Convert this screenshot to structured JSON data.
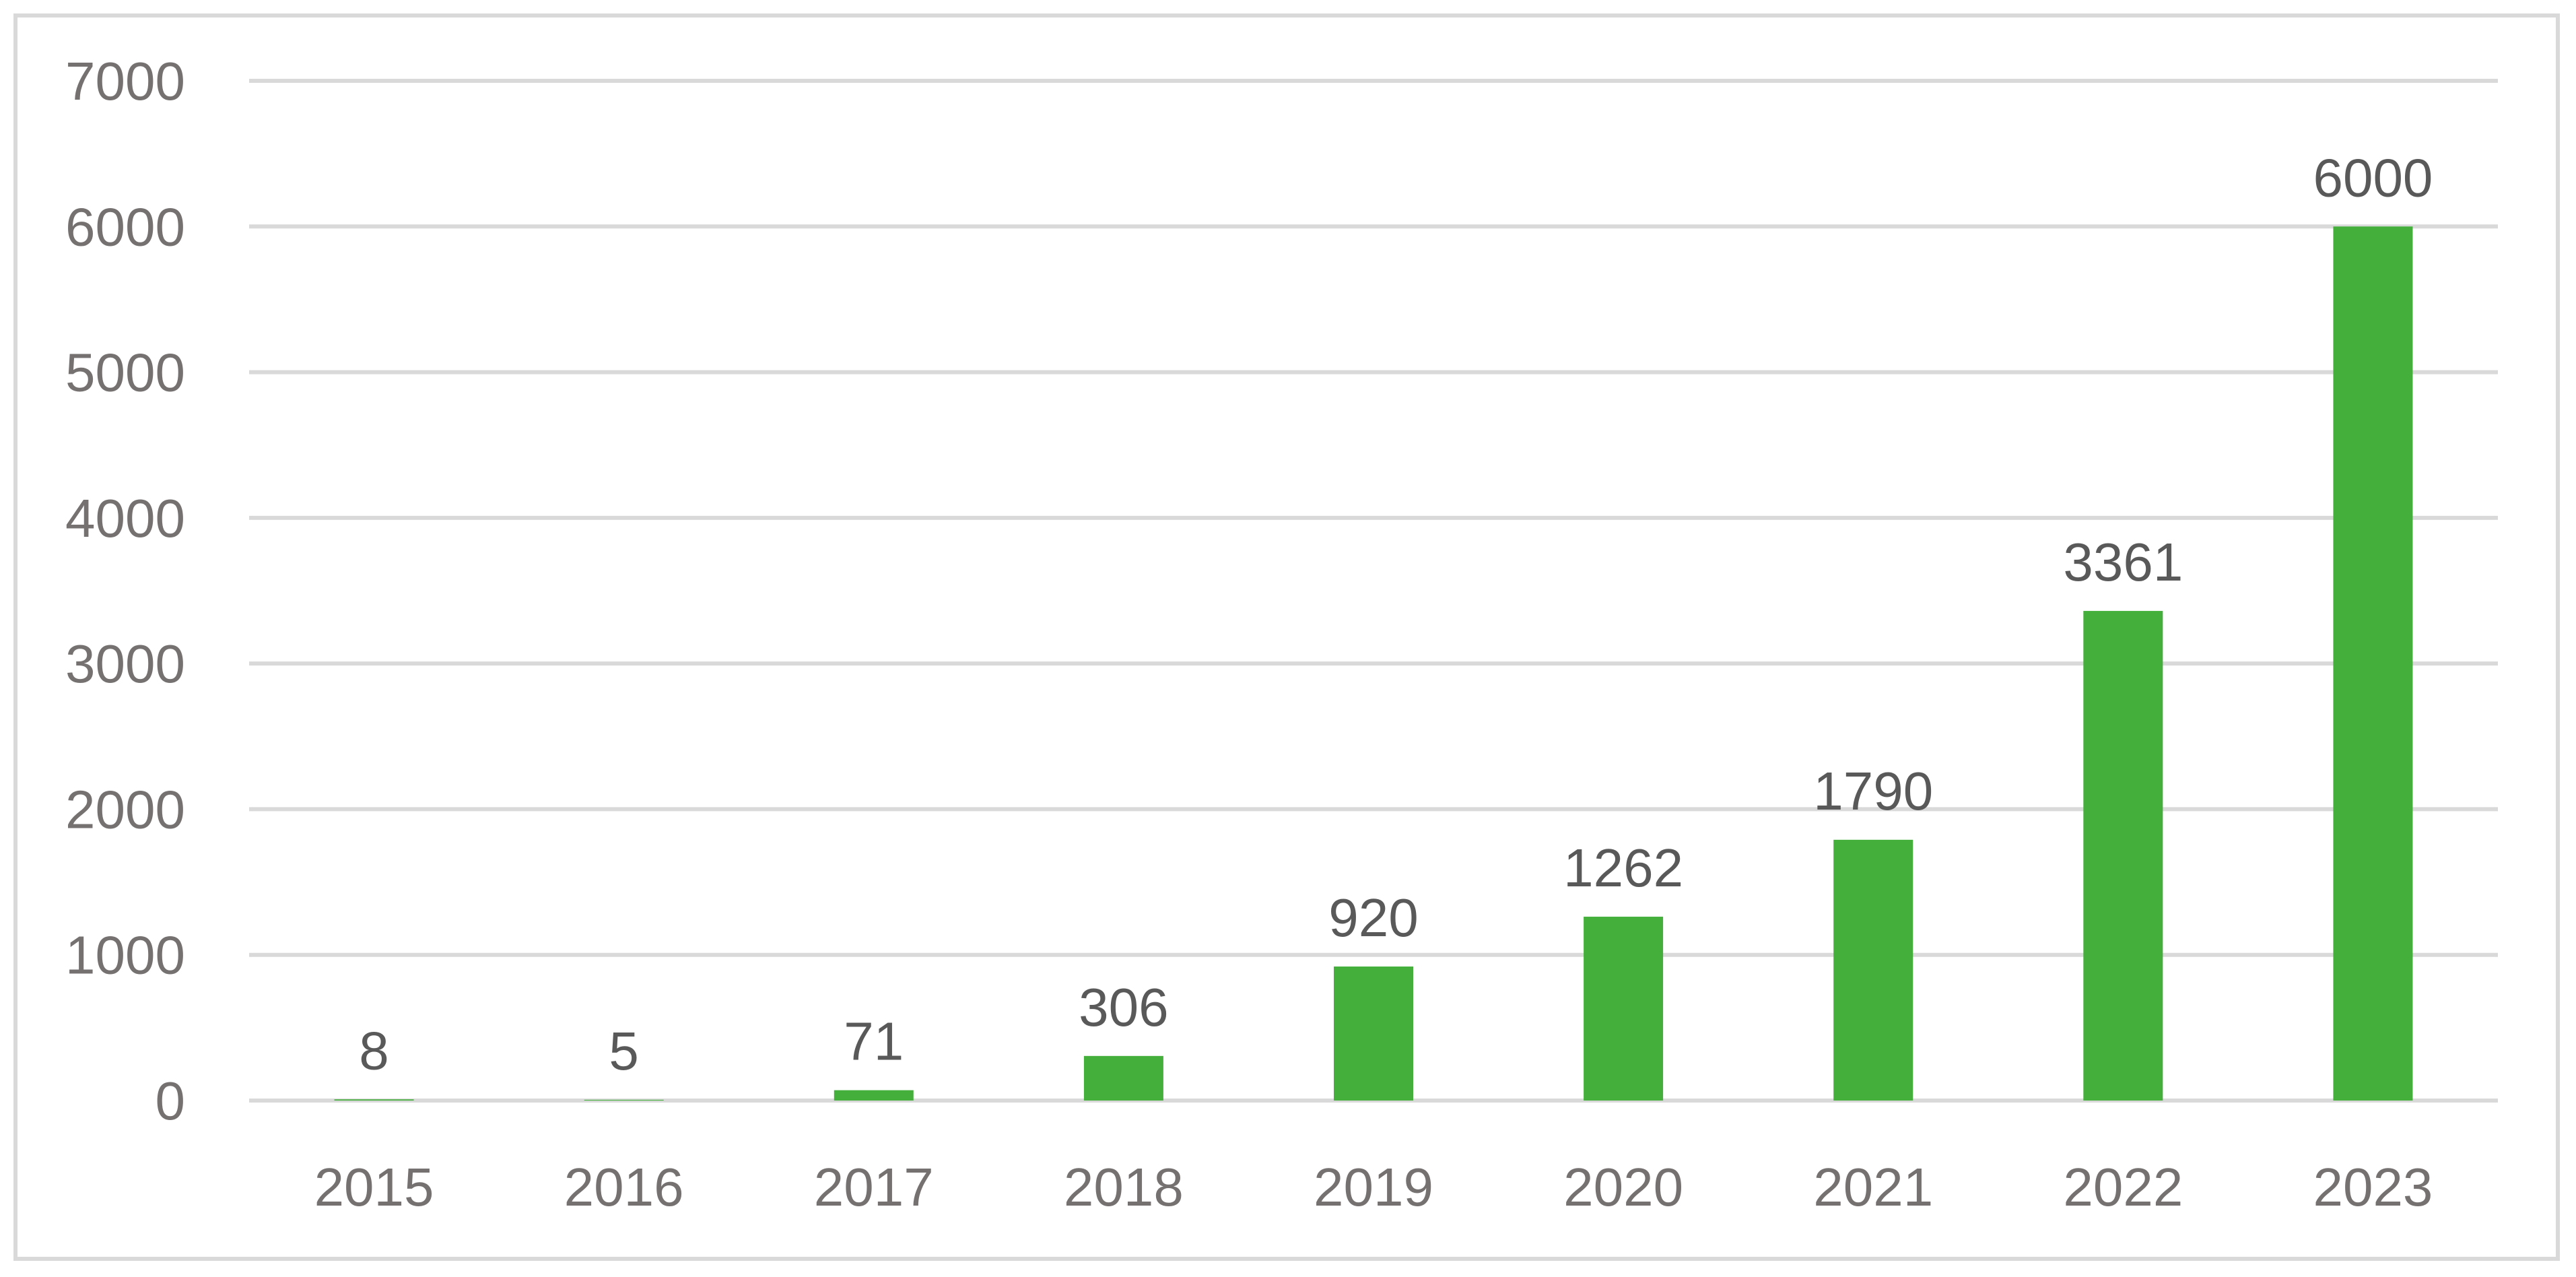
{
  "chart_data": {
    "type": "bar",
    "categories": [
      "2015",
      "2016",
      "2017",
      "2018",
      "2019",
      "2020",
      "2021",
      "2022",
      "2023"
    ],
    "values": [
      8,
      5,
      71,
      306,
      920,
      1262,
      1790,
      3361,
      6000
    ],
    "data_labels": [
      "8",
      "5",
      "71",
      "306",
      "920",
      "1262",
      "1790",
      "3361",
      "6000"
    ],
    "y_ticks": [
      "0",
      "1000",
      "2000",
      "3000",
      "4000",
      "5000",
      "6000",
      "7000"
    ],
    "ylim": [
      0,
      7000
    ],
    "title": "",
    "xlabel": "",
    "ylabel": "",
    "grid": true,
    "legend": "none",
    "colors": {
      "bar": "#44b03b",
      "gridline": "#d9d9d9",
      "tick_text": "#767171",
      "data_label_text": "#595959",
      "frame": "#d9d9d9"
    }
  }
}
